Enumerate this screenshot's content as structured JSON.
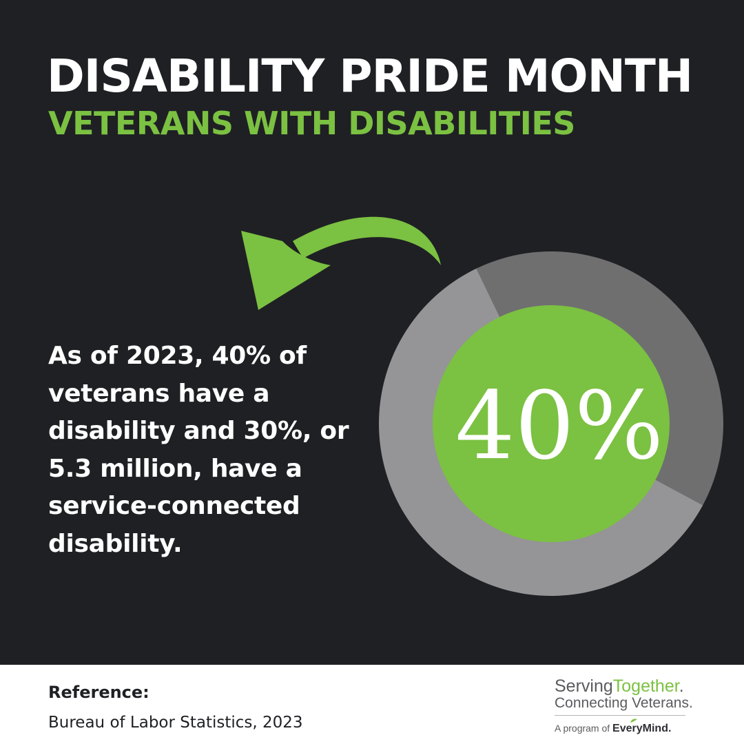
{
  "header": {
    "title": "DISABILITY PRIDE MONTH",
    "subtitle": "VETERANS WITH DISABILITIES"
  },
  "body": {
    "statement": "As of 2023, 40% of veterans have a disability and 30%, or 5.3 million, have a service-connected disability."
  },
  "chart_data": {
    "type": "pie",
    "center_label": "40%",
    "slices": [
      {
        "value": 40,
        "color": "#6f6f70"
      },
      {
        "value": 60,
        "color": "#959497"
      }
    ],
    "center_color": "#7bc142"
  },
  "footer": {
    "reference_label": "Reference:",
    "reference_source": "Bureau of Labor Statistics, 2023",
    "brand_name_part1": "Serving",
    "brand_name_part2": "Together",
    "brand_name_dot": ".",
    "brand_tagline": "Connecting Veterans.",
    "program_prefix": "A program of",
    "program_name": "EveryMind",
    "program_dot": "."
  },
  "colors": {
    "background": "#1f2024",
    "accent_green": "#7bc142",
    "text_white": "#ffffff"
  },
  "icons": [
    "curved-arrow-icon",
    "leaf-icon"
  ]
}
